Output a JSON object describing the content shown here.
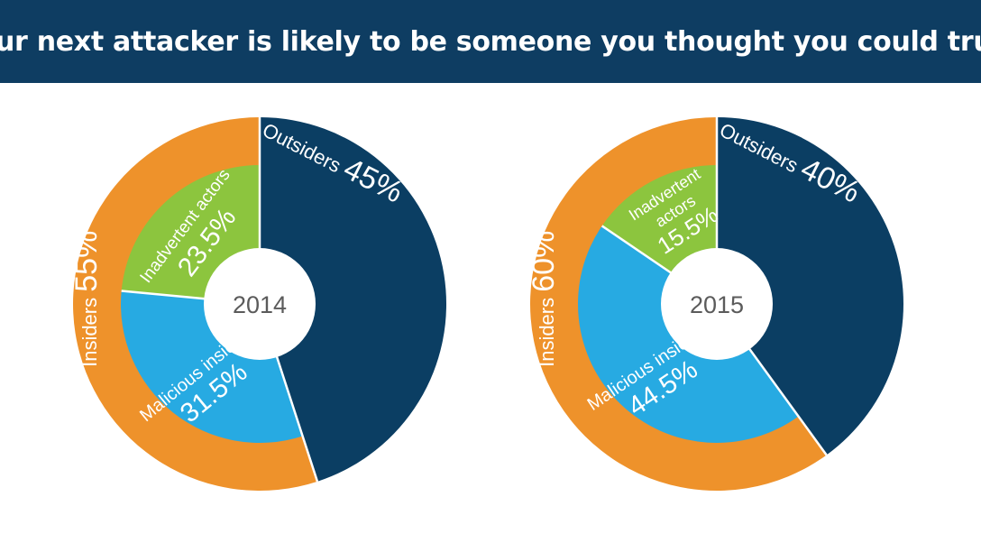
{
  "header": {
    "title": "Your next attacker is likely to be someone you thought you could trust"
  },
  "colors": {
    "banner": "#0e3d62",
    "outsiders": "#0b3e63",
    "insiders": "#ee922b",
    "inadvertent": "#8cc53e",
    "malicious": "#27aae2",
    "divider": "#ffffff"
  },
  "chart_data": [
    {
      "type": "pie",
      "title": "2014",
      "center_label": "2014",
      "outer_ring": [
        {
          "name": "Outsiders",
          "value": 45,
          "value_label": "45%"
        },
        {
          "name": "Insiders",
          "value": 55,
          "value_label": "55%"
        }
      ],
      "inner_ring": [
        {
          "name": "Malicious insiders",
          "parent": "Insiders",
          "value": 31.5,
          "value_label": "31.5%"
        },
        {
          "name": "Inadvertent actors",
          "parent": "Insiders",
          "value": 23.5,
          "value_label": "23.5%"
        }
      ]
    },
    {
      "type": "pie",
      "title": "2015",
      "center_label": "2015",
      "outer_ring": [
        {
          "name": "Outsiders",
          "value": 40,
          "value_label": "40%"
        },
        {
          "name": "Insiders",
          "value": 60,
          "value_label": "60%"
        }
      ],
      "inner_ring": [
        {
          "name": "Malicious insiders",
          "parent": "Insiders",
          "value": 44.5,
          "value_label": "44.5%"
        },
        {
          "name": "Inadvertent actors",
          "parent": "Insiders",
          "value": 15.5,
          "value_label": "15.5%"
        }
      ]
    }
  ]
}
